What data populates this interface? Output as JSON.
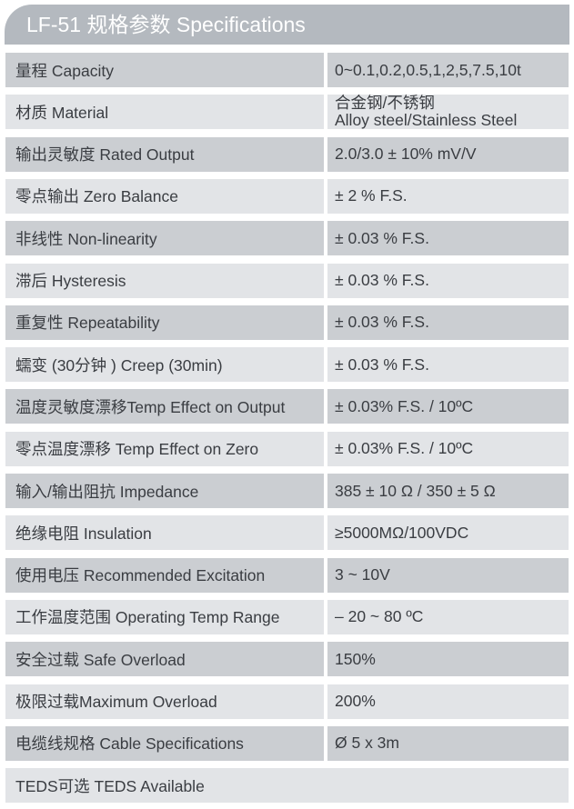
{
  "title": "LF-51 规格参数 Specifications",
  "rows": [
    {
      "label": "量程 Capacity",
      "value": [
        "0~0.1,0.2,0.5,1,2,5,7.5,10t"
      ]
    },
    {
      "label": "材质 Material",
      "value": [
        "合金钢/不锈钢",
        "Alloy steel/Stainless Steel"
      ]
    },
    {
      "label": "输出灵敏度 Rated Output",
      "value": [
        "2.0/3.0 ± 10% mV/V"
      ]
    },
    {
      "label": "零点输出  Zero Balance",
      "value": [
        "± 2 % F.S."
      ]
    },
    {
      "label": "非线性 Non-linearity",
      "value": [
        "± 0.03 % F.S."
      ]
    },
    {
      "label": "滞后 Hysteresis",
      "value": [
        "± 0.03 % F.S."
      ]
    },
    {
      "label": "重复性 Repeatability",
      "value": [
        "± 0.03 % F.S."
      ]
    },
    {
      "label": "蠕变 (30分钟 ) Creep (30min)",
      "value": [
        "± 0.03 % F.S."
      ]
    },
    {
      "label": "温度灵敏度漂移Temp Effect on Output",
      "value": [
        "± 0.03% F.S. / 10ºC"
      ]
    },
    {
      "label": "零点温度漂移 Temp Effect on Zero",
      "value": [
        "± 0.03% F.S. / 10ºC"
      ]
    },
    {
      "label": "输入/输出阻抗 Impedance",
      "value": [
        "385 ± 10 Ω  / 350 ± 5 Ω"
      ]
    },
    {
      "label": "绝缘电阻  Insulation",
      "value": [
        "≥5000MΩ/100VDC"
      ]
    },
    {
      "label": "使用电压 Recommended Excitation",
      "value": [
        "3 ~ 10V"
      ]
    },
    {
      "label": "工作温度范围 Operating Temp  Range",
      "value": [
        "– 20 ~ 80 ºC"
      ]
    },
    {
      "label": "安全过载 Safe Overload",
      "value": [
        "150%"
      ]
    },
    {
      "label": "极限过载Maximum Overload",
      "value": [
        "200%"
      ]
    },
    {
      "label": "电缆线规格 Cable Specifications",
      "value": [
        "Ø 5 x 3m"
      ]
    }
  ],
  "footer": "TEDS可选 TEDS Available",
  "colors": {
    "header": "#b4b9bf",
    "row_dark": "#cbced2",
    "row_light": "#e2e4e7",
    "text": "#3a3d42"
  }
}
